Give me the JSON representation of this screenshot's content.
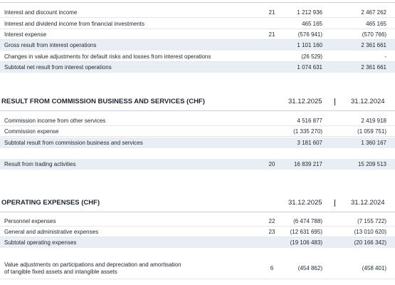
{
  "sections": [
    {
      "rows": [
        {
          "label": "Interest and discount income",
          "note": "21",
          "v1": "1 212 936",
          "v2": "2 467 262"
        },
        {
          "label": "Interest and dividend income from financial investments",
          "v1": "465 165",
          "v2": "465 165"
        },
        {
          "label": "Interest expense",
          "note": "21",
          "v1": "(576 941)",
          "v2": "(570 766)"
        },
        {
          "label": "Gross result from interest operations",
          "v1": "1 101 160",
          "v2": "2 361 661"
        },
        {
          "label": "Changes in value adjustments for default risks and losses from interest operations",
          "v1": "(26 529)",
          "v2": "-"
        },
        {
          "label": "Subtotal net result from interest operations",
          "v1": "1 074 631",
          "v2": "2 361 661"
        }
      ]
    },
    {
      "heading": "RESULT FROM COMMISSION BUSINESS AND SERVICES (CHF)",
      "col1": "31.12.2025",
      "col2": "31.12.2024",
      "rows": [
        {
          "label": "Commission income from other services",
          "v1": "4 516 877",
          "v2": "2 419 918"
        },
        {
          "label": "Commission expense",
          "v1": "(1 335 270)",
          "v2": "(1 059 751)"
        },
        {
          "label": "Subtotal result from commission business and services",
          "v1": "3 181 607",
          "v2": "1 360 167"
        }
      ]
    },
    {
      "rows": [
        {
          "label": "Result from trading activities",
          "note": "20",
          "v1": "16 839 217",
          "v2": "15 209 513"
        }
      ]
    },
    {
      "heading": "OPERATING EXPENSES (CHF)",
      "col1": "31.12.2025",
      "col2": "31.12.2024",
      "rows": [
        {
          "label": "Personnel expenses",
          "note": "22",
          "v1": "(6 474 788)",
          "v2": "(7 155 722)"
        },
        {
          "label": "General and administrative expenses",
          "note": "23",
          "v1": "(12 631 695)",
          "v2": "(13 010 620)"
        },
        {
          "label": "Subtotal operating expenses",
          "v1": "(19 106 483)",
          "v2": "(20 166 342)"
        },
        {
          "label": [
            "Value adjustments on participations and depreciation and amortisation",
            "of tangible fixed assets and intangible assets"
          ],
          "note": "6",
          "v1": "(454 862)",
          "v2": "(458 401)"
        }
      ]
    }
  ]
}
